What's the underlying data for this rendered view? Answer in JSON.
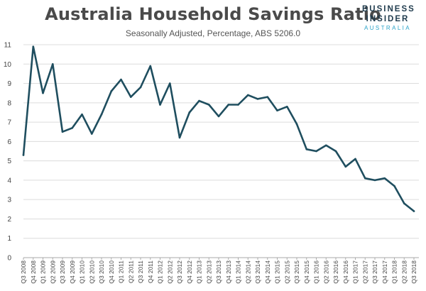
{
  "title": "Australia Household Savings Ratio",
  "subtitle": "Seasonally Adjusted, Percentage, ABS 5206.0",
  "logo": {
    "line1": "BUSINESS",
    "line2": "INSIDER",
    "line3": "AUSTRALIA"
  },
  "colors": {
    "line": "#1f4e5f",
    "grid": "#dcdcdc",
    "axis": "#aaaaaa"
  },
  "chart_data": {
    "type": "line",
    "title": "Australia Household Savings Ratio",
    "subtitle": "Seasonally Adjusted, Percentage, ABS 5206.0",
    "xlabel": "",
    "ylabel": "",
    "ylim": [
      0,
      11
    ],
    "yticks": [
      0,
      1,
      2,
      3,
      4,
      5,
      6,
      7,
      8,
      9,
      10,
      11
    ],
    "grid": true,
    "legend": "none",
    "categories": [
      "Q3 2008",
      "Q4 2008",
      "Q1 2009",
      "Q2 2009",
      "Q3 2009",
      "Q4 2009",
      "Q1 2010",
      "Q2 2010",
      "Q3 2010",
      "Q4 2010",
      "Q1 2011",
      "Q2 2011",
      "Q3 2011",
      "Q4 2011",
      "Q1 2012",
      "Q2 2012",
      "Q3 2012",
      "Q4 2012",
      "Q1 2013",
      "Q2 2013",
      "Q3 2013",
      "Q4 2013",
      "Q1 2014",
      "Q2 2014",
      "Q3 2014",
      "Q4 2014",
      "Q1 2015",
      "Q2 2015",
      "Q3 2015",
      "Q4 2015",
      "Q1 2016",
      "Q2 2016",
      "Q3 2016",
      "Q4 2016",
      "Q1 2017",
      "Q2 2017",
      "Q3 2017",
      "Q4 2017",
      "Q1 2018",
      "Q2 2018",
      "Q3 2018"
    ],
    "values": [
      5.3,
      10.9,
      8.5,
      10.0,
      6.5,
      6.7,
      7.4,
      6.4,
      7.4,
      8.6,
      9.2,
      8.3,
      8.8,
      9.9,
      7.9,
      9.0,
      6.2,
      7.5,
      8.1,
      7.9,
      7.3,
      7.9,
      7.9,
      8.4,
      8.2,
      8.3,
      7.6,
      7.8,
      6.9,
      5.6,
      5.5,
      5.8,
      5.5,
      4.7,
      5.1,
      4.1,
      4.0,
      4.1,
      3.7,
      2.8,
      2.4
    ]
  }
}
